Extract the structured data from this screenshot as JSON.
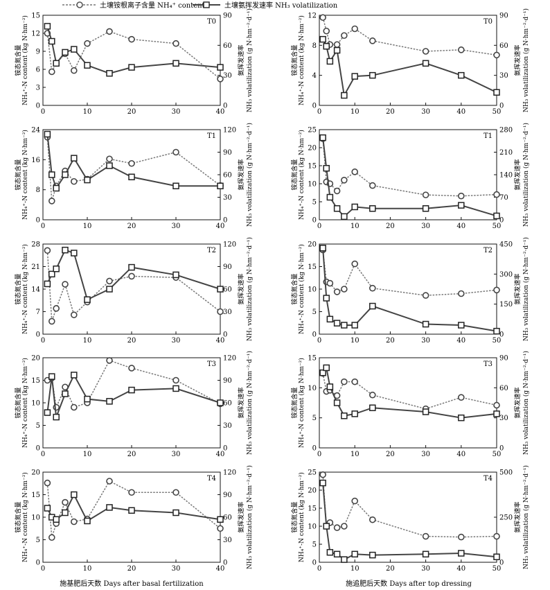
{
  "legend": {
    "series_nh4": "土壤铵根离子含量 NH₄⁺ content",
    "series_nh3": "土壤氨挥发速率 NH₃ volatilization"
  },
  "column_xlabels": [
    "施基肥后天数 Days after basal fertilization",
    "施追肥后天数 Days after top dressing"
  ],
  "left_ylabel_cn": "铵态氮含量",
  "left_ylabel_en": "NH₄⁺-N content (kg N·hm⁻²)",
  "right_ylabel_cn": "氨挥发速率",
  "right_ylabel_en": "NH₃ volatilization (g N·hm⁻²·d⁻¹)",
  "colors": {
    "nh4": "#777777",
    "nh3": "#444444",
    "axis": "#111111"
  },
  "chart_data": [
    {
      "type": "line",
      "panel": "T0",
      "stage": "basal",
      "x": [
        1,
        2,
        3,
        5,
        7,
        10,
        15,
        20,
        30,
        40
      ],
      "xlim": [
        0,
        40
      ],
      "xticks": [
        0,
        10,
        20,
        30,
        40
      ],
      "ylim": [
        0,
        15
      ],
      "yticks": [
        0,
        3,
        6,
        9,
        12,
        15
      ],
      "y2lim": [
        0,
        90
      ],
      "y2ticks": [
        0,
        30,
        60,
        90
      ],
      "series": [
        {
          "name": "土壤铵根离子含量 NH₄⁺ content",
          "axis": "left",
          "values": [
            12,
            5.6,
            7,
            8.6,
            5.8,
            10.3,
            12.3,
            11,
            10.3,
            4.4
          ]
        },
        {
          "name": "土壤氨挥发速率 NH₃ volatilization",
          "axis": "right",
          "values": [
            79,
            64,
            42,
            53,
            56,
            40,
            32,
            38,
            42,
            38
          ]
        }
      ]
    },
    {
      "type": "line",
      "panel": "T0",
      "stage": "top",
      "x": [
        1,
        2,
        3,
        5,
        7,
        10,
        15,
        30,
        40,
        50
      ],
      "xlim": [
        0,
        50
      ],
      "xticks": [
        0,
        10,
        20,
        30,
        40,
        50
      ],
      "ylim": [
        0,
        12
      ],
      "yticks": [
        0,
        4,
        8,
        12
      ],
      "y2lim": [
        0,
        90
      ],
      "y2ticks": [
        0,
        30,
        60,
        90
      ],
      "series": [
        {
          "name": "土壤铵根离子含量 NH₄⁺ content",
          "axis": "left",
          "values": [
            11.7,
            9.9,
            8.1,
            8.1,
            9.3,
            10.2,
            8.6,
            7.2,
            7.4,
            6.7
          ]
        },
        {
          "name": "土壤氨挥发速率 NH₃ volatilization",
          "axis": "right",
          "values": [
            66,
            59,
            44,
            55,
            10,
            29,
            30,
            42,
            30,
            13
          ]
        }
      ]
    },
    {
      "type": "line",
      "panel": "T1",
      "stage": "basal",
      "x": [
        1,
        2,
        3,
        5,
        7,
        10,
        15,
        20,
        30,
        40
      ],
      "xlim": [
        0,
        40
      ],
      "xticks": [
        0,
        10,
        20,
        30,
        40
      ],
      "ylim": [
        0,
        24
      ],
      "yticks": [
        0,
        8,
        16,
        24
      ],
      "y2lim": [
        0,
        120
      ],
      "y2ticks": [
        0,
        30,
        60,
        90,
        120
      ],
      "series": [
        {
          "name": "土壤铵根离子含量 NH₄⁺ content",
          "axis": "left",
          "values": [
            22,
            5,
            9,
            13,
            10.2,
            10.8,
            16.2,
            15,
            18,
            9.1
          ]
        },
        {
          "name": "土壤氨挥发速率 NH₃ volatilization",
          "axis": "right",
          "values": [
            114,
            60,
            42,
            60,
            82,
            53,
            72,
            57,
            45,
            45
          ]
        }
      ]
    },
    {
      "type": "line",
      "panel": "T1",
      "stage": "top",
      "x": [
        1,
        2,
        3,
        5,
        7,
        10,
        15,
        30,
        40,
        50
      ],
      "xlim": [
        0,
        50
      ],
      "xticks": [
        0,
        10,
        20,
        30,
        40,
        50
      ],
      "ylim": [
        0,
        25
      ],
      "yticks": [
        0,
        5,
        10,
        15,
        20,
        25
      ],
      "y2lim": [
        0,
        280
      ],
      "y2ticks": [
        0,
        70,
        140,
        210,
        280
      ],
      "series": [
        {
          "name": "土壤铵根离子含量 NH₄⁺ content",
          "axis": "left",
          "values": [
            22.5,
            10.5,
            10,
            8,
            11,
            13.3,
            9.5,
            6.9,
            6.6,
            7
          ]
        },
        {
          "name": "土壤氨挥发速率 NH₃ volatilization",
          "axis": "right",
          "values": [
            255,
            160,
            70,
            35,
            10,
            40,
            35,
            35,
            45,
            12
          ]
        }
      ]
    },
    {
      "type": "line",
      "panel": "T2",
      "stage": "basal",
      "x": [
        1,
        2,
        3,
        5,
        7,
        10,
        15,
        20,
        30,
        40
      ],
      "xlim": [
        0,
        40
      ],
      "xticks": [
        0,
        10,
        20,
        30,
        40
      ],
      "ylim": [
        0,
        28
      ],
      "yticks": [
        0,
        7,
        14,
        21,
        28
      ],
      "y2lim": [
        0,
        120
      ],
      "y2ticks": [
        0,
        30,
        60,
        90,
        120
      ],
      "series": [
        {
          "name": "土壤铵根离子含量 NH₄⁺ content",
          "axis": "left",
          "values": [
            26,
            4,
            8,
            15.5,
            6,
            10,
            16.5,
            18,
            17.6,
            7
          ]
        },
        {
          "name": "土壤氨挥发速率 NH₃ volatilization",
          "axis": "right",
          "values": [
            67,
            80,
            87,
            112,
            108,
            46,
            60,
            89,
            79,
            60
          ]
        }
      ]
    },
    {
      "type": "line",
      "panel": "T2",
      "stage": "top",
      "x": [
        1,
        2,
        3,
        5,
        7,
        10,
        15,
        30,
        40,
        50
      ],
      "xlim": [
        0,
        50
      ],
      "xticks": [
        0,
        10,
        20,
        30,
        40,
        50
      ],
      "ylim": [
        0,
        20
      ],
      "yticks": [
        0,
        5,
        10,
        15,
        20
      ],
      "y2lim": [
        0,
        450
      ],
      "y2ticks": [
        0,
        150,
        300,
        450
      ],
      "series": [
        {
          "name": "土壤铵根离子含量 NH₄⁺ content",
          "axis": "left",
          "values": [
            18.7,
            11.6,
            11.3,
            9.4,
            10,
            15.6,
            10.2,
            8.6,
            9,
            9.8
          ]
        },
        {
          "name": "土壤氨挥发速率 NH₃ volatilization",
          "axis": "right",
          "values": [
            430,
            180,
            75,
            55,
            45,
            45,
            140,
            50,
            45,
            15
          ]
        }
      ]
    },
    {
      "type": "line",
      "panel": "T3",
      "stage": "basal",
      "x": [
        1,
        2,
        3,
        5,
        7,
        10,
        15,
        20,
        30,
        40
      ],
      "xlim": [
        0,
        40
      ],
      "xticks": [
        0,
        10,
        20,
        30,
        40
      ],
      "ylim": [
        0,
        20
      ],
      "yticks": [
        0,
        5,
        10,
        15,
        20
      ],
      "y2lim": [
        0,
        120
      ],
      "y2ticks": [
        0,
        30,
        60,
        90,
        120
      ],
      "series": [
        {
          "name": "土壤铵根离子含量 NH₄⁺ content",
          "axis": "left",
          "values": [
            15,
            15.5,
            9,
            13.5,
            9,
            10,
            19.4,
            17.7,
            15,
            9.8
          ]
        },
        {
          "name": "土壤氨挥发速率 NH₃ volatilization",
          "axis": "right",
          "values": [
            47,
            95,
            41,
            72,
            97,
            65,
            62,
            77,
            79,
            60
          ]
        }
      ]
    },
    {
      "type": "line",
      "panel": "T3",
      "stage": "top",
      "x": [
        1,
        2,
        3,
        5,
        7,
        10,
        15,
        30,
        40,
        50
      ],
      "xlim": [
        0,
        50
      ],
      "xticks": [
        0,
        10,
        20,
        30,
        40,
        50
      ],
      "ylim": [
        0,
        15
      ],
      "yticks": [
        0,
        5,
        10,
        15
      ],
      "y2lim": [
        0,
        90
      ],
      "y2ticks": [
        0,
        30,
        60,
        90
      ],
      "series": [
        {
          "name": "土壤铵根离子含量 NH₄⁺ content",
          "axis": "left",
          "values": [
            12.4,
            9.4,
            9.6,
            8.7,
            11,
            11,
            8.8,
            6.5,
            8.4,
            7.1
          ]
        },
        {
          "name": "土壤氨挥发速率 NH₃ volatilization",
          "axis": "right",
          "values": [
            75,
            80,
            61,
            45,
            32,
            34,
            40,
            36,
            30,
            34
          ]
        }
      ]
    },
    {
      "type": "line",
      "panel": "T4",
      "stage": "basal",
      "x": [
        1,
        2,
        3,
        5,
        7,
        10,
        15,
        20,
        30,
        40
      ],
      "xlim": [
        0,
        40
      ],
      "xticks": [
        0,
        10,
        20,
        30,
        40
      ],
      "ylim": [
        0,
        20
      ],
      "yticks": [
        0,
        5,
        10,
        15,
        20
      ],
      "y2lim": [
        0,
        120
      ],
      "y2ticks": [
        0,
        30,
        60,
        90,
        120
      ],
      "series": [
        {
          "name": "土壤铵根离子含量 NH₄⁺ content",
          "axis": "left",
          "values": [
            17.6,
            5.5,
            8.6,
            13.3,
            9,
            9.6,
            18,
            15.5,
            15.5,
            7.5
          ]
        },
        {
          "name": "土壤氨挥发速率 NH₃ volatilization",
          "axis": "right",
          "values": [
            72,
            60,
            57,
            66,
            90,
            55,
            73,
            69,
            66,
            57
          ]
        }
      ]
    },
    {
      "type": "line",
      "panel": "T4",
      "stage": "top",
      "x": [
        1,
        2,
        3,
        5,
        7,
        10,
        15,
        30,
        40,
        50
      ],
      "xlim": [
        0,
        50
      ],
      "xticks": [
        0,
        10,
        20,
        30,
        40,
        50
      ],
      "ylim": [
        0,
        25
      ],
      "yticks": [
        0,
        5,
        10,
        15,
        20,
        25
      ],
      "y2lim": [
        0,
        500
      ],
      "y2ticks": [
        0,
        250,
        500
      ],
      "series": [
        {
          "name": "土壤铵根离子含量 NH₄⁺ content",
          "axis": "left",
          "values": [
            24.3,
            10,
            11,
            9.6,
            10,
            17,
            11.8,
            7.2,
            7,
            7.2
          ]
        },
        {
          "name": "土壤氨挥发速率 NH₃ volatilization",
          "axis": "right",
          "values": [
            440,
            200,
            55,
            45,
            15,
            45,
            40,
            45,
            50,
            30
          ]
        }
      ]
    }
  ]
}
